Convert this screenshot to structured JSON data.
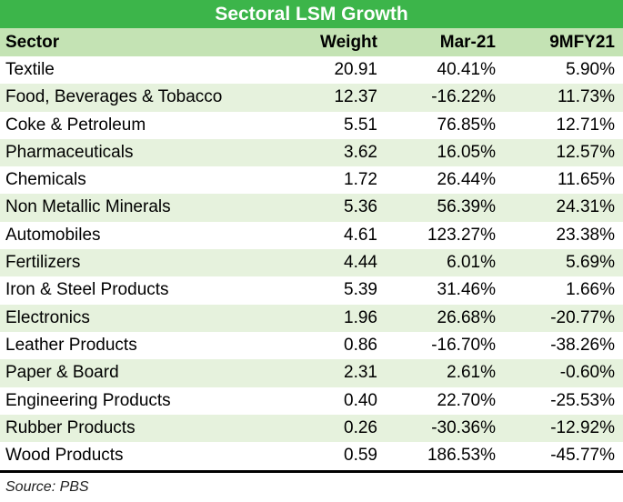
{
  "title": "Sectoral LSM Growth",
  "source": "Source: PBS",
  "colors": {
    "title_bg": "#3cb54a",
    "header_bg": "#c4e3b4",
    "alt_row_bg": "#e6f2dd"
  },
  "chart_data": {
    "type": "table",
    "title": "Sectoral LSM Growth",
    "columns": [
      "Sector",
      "Weight",
      "Mar-21",
      "9MFY21"
    ],
    "rows": [
      [
        "Textile",
        "20.91",
        "40.41%",
        "5.90%"
      ],
      [
        "Food, Beverages & Tobacco",
        "12.37",
        "-16.22%",
        "11.73%"
      ],
      [
        "Coke & Petroleum",
        "5.51",
        "76.85%",
        "12.71%"
      ],
      [
        "Pharmaceuticals",
        "3.62",
        "16.05%",
        "12.57%"
      ],
      [
        "Chemicals",
        "1.72",
        "26.44%",
        "11.65%"
      ],
      [
        "Non Metallic Minerals",
        "5.36",
        "56.39%",
        "24.31%"
      ],
      [
        "Automobiles",
        "4.61",
        "123.27%",
        "23.38%"
      ],
      [
        "Fertilizers",
        "4.44",
        "6.01%",
        "5.69%"
      ],
      [
        "Iron & Steel Products",
        "5.39",
        "31.46%",
        "1.66%"
      ],
      [
        "Electronics",
        "1.96",
        "26.68%",
        "-20.77%"
      ],
      [
        "Leather Products",
        "0.86",
        "-16.70%",
        "-38.26%"
      ],
      [
        "Paper & Board",
        "2.31",
        "2.61%",
        "-0.60%"
      ],
      [
        "Engineering Products",
        "0.40",
        "22.70%",
        "-25.53%"
      ],
      [
        "Rubber Products",
        "0.26",
        "-30.36%",
        "-12.92%"
      ],
      [
        "Wood Products",
        "0.59",
        "186.53%",
        "-45.77%"
      ]
    ]
  }
}
